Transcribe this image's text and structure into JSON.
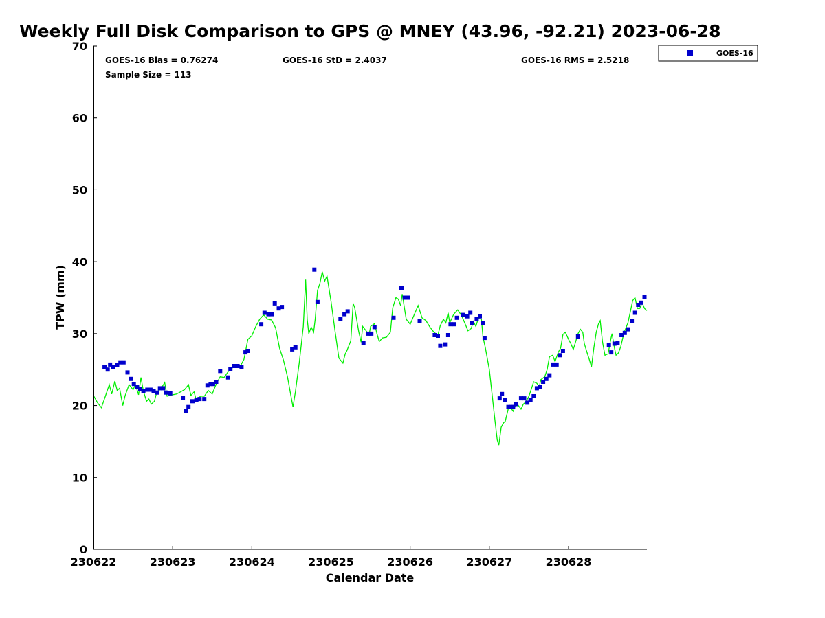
{
  "chart_data": {
    "type": "scatter",
    "title": "Weekly Full Disk Comparison to GPS @ MNEY (43.96, -92.21) 2023-06-28",
    "xlabel": "Calendar Date",
    "ylabel": "TPW (mm)",
    "x_start": "2023-06-22T00:00",
    "xlim_days": [
      0,
      6.99
    ],
    "ylim": [
      0,
      70
    ],
    "yticks": [
      0,
      10,
      20,
      30,
      40,
      50,
      60,
      70
    ],
    "xticks": [
      {
        "day": 0,
        "label": "230622"
      },
      {
        "day": 1,
        "label": "230623"
      },
      {
        "day": 2,
        "label": "230624"
      },
      {
        "day": 3,
        "label": "230625"
      },
      {
        "day": 4,
        "label": "230626"
      },
      {
        "day": 5,
        "label": "230627"
      },
      {
        "day": 6,
        "label": "230628"
      }
    ],
    "grid": false,
    "legend": {
      "position": "top-right-outside",
      "entries": [
        "GOES-16"
      ]
    },
    "stats": {
      "bias": "GOES-16 Bias = 0.76274",
      "std": "GOES-16 StD = 2.4037",
      "rms": "GOES-16 RMS = 2.5218",
      "sample": "Sample Size = 113"
    },
    "colors": {
      "goes": "#0000cc",
      "gps": "#00ee00"
    },
    "series": [
      {
        "name": "GOES-16",
        "marker": "square",
        "points": [
          [
            0.14,
            25.4
          ],
          [
            0.18,
            25.0
          ],
          [
            0.21,
            25.7
          ],
          [
            0.25,
            25.4
          ],
          [
            0.3,
            25.6
          ],
          [
            0.34,
            26.0
          ],
          [
            0.38,
            26.0
          ],
          [
            0.43,
            24.6
          ],
          [
            0.47,
            23.7
          ],
          [
            0.51,
            23.0
          ],
          [
            0.55,
            22.6
          ],
          [
            0.59,
            22.3
          ],
          [
            0.63,
            22.0
          ],
          [
            0.68,
            22.2
          ],
          [
            0.72,
            22.2
          ],
          [
            0.76,
            22.0
          ],
          [
            0.8,
            21.8
          ],
          [
            0.84,
            22.4
          ],
          [
            0.88,
            22.4
          ],
          [
            0.92,
            21.8
          ],
          [
            0.97,
            21.7
          ],
          [
            1.13,
            21.1
          ],
          [
            1.17,
            19.2
          ],
          [
            1.2,
            19.8
          ],
          [
            1.25,
            20.6
          ],
          [
            1.3,
            20.8
          ],
          [
            1.34,
            20.9
          ],
          [
            1.4,
            20.9
          ],
          [
            1.44,
            22.8
          ],
          [
            1.48,
            23.0
          ],
          [
            1.51,
            23.0
          ],
          [
            1.55,
            23.3
          ],
          [
            1.6,
            24.8
          ],
          [
            1.7,
            23.9
          ],
          [
            1.73,
            25.1
          ],
          [
            1.78,
            25.5
          ],
          [
            1.82,
            25.5
          ],
          [
            1.87,
            25.4
          ],
          [
            1.92,
            27.4
          ],
          [
            1.95,
            27.6
          ],
          [
            2.12,
            31.3
          ],
          [
            2.16,
            32.9
          ],
          [
            2.21,
            32.7
          ],
          [
            2.25,
            32.7
          ],
          [
            2.29,
            34.2
          ],
          [
            2.34,
            33.5
          ],
          [
            2.38,
            33.7
          ],
          [
            2.51,
            27.8
          ],
          [
            2.55,
            28.1
          ],
          [
            2.79,
            38.9
          ],
          [
            2.83,
            34.4
          ],
          [
            3.12,
            32.0
          ],
          [
            3.17,
            32.7
          ],
          [
            3.21,
            33.1
          ],
          [
            3.41,
            28.7
          ],
          [
            3.47,
            30.0
          ],
          [
            3.51,
            30.0
          ],
          [
            3.55,
            30.9
          ],
          [
            3.79,
            32.2
          ],
          [
            3.89,
            36.3
          ],
          [
            3.93,
            35.0
          ],
          [
            3.97,
            35.0
          ],
          [
            4.12,
            31.8
          ],
          [
            4.31,
            29.8
          ],
          [
            4.35,
            29.7
          ],
          [
            4.38,
            28.3
          ],
          [
            4.44,
            28.5
          ],
          [
            4.48,
            29.8
          ],
          [
            4.51,
            31.3
          ],
          [
            4.55,
            31.3
          ],
          [
            4.59,
            32.2
          ],
          [
            4.67,
            32.6
          ],
          [
            4.72,
            32.4
          ],
          [
            4.76,
            32.9
          ],
          [
            4.78,
            31.5
          ],
          [
            4.84,
            32.0
          ],
          [
            4.88,
            32.4
          ],
          [
            4.92,
            31.5
          ],
          [
            4.94,
            29.4
          ],
          [
            5.13,
            21.0
          ],
          [
            5.16,
            21.6
          ],
          [
            5.2,
            20.8
          ],
          [
            5.24,
            19.8
          ],
          [
            5.28,
            19.8
          ],
          [
            5.3,
            19.8
          ],
          [
            5.34,
            20.2
          ],
          [
            5.4,
            21.0
          ],
          [
            5.44,
            21.0
          ],
          [
            5.48,
            20.4
          ],
          [
            5.52,
            20.8
          ],
          [
            5.56,
            21.3
          ],
          [
            5.6,
            22.4
          ],
          [
            5.64,
            22.6
          ],
          [
            5.68,
            23.3
          ],
          [
            5.72,
            23.7
          ],
          [
            5.76,
            24.2
          ],
          [
            5.8,
            25.7
          ],
          [
            5.85,
            25.7
          ],
          [
            5.89,
            27.0
          ],
          [
            5.93,
            27.6
          ],
          [
            6.12,
            29.6
          ],
          [
            6.51,
            28.4
          ],
          [
            6.54,
            27.4
          ],
          [
            6.58,
            28.6
          ],
          [
            6.62,
            28.7
          ],
          [
            6.67,
            29.8
          ],
          [
            6.71,
            30.1
          ],
          [
            6.75,
            30.6
          ],
          [
            6.8,
            31.8
          ],
          [
            6.84,
            32.9
          ],
          [
            6.88,
            34.0
          ],
          [
            6.92,
            34.3
          ],
          [
            6.96,
            35.1
          ]
        ]
      },
      {
        "name": "",
        "line": true,
        "points": [
          [
            0.0,
            21.4
          ],
          [
            0.05,
            20.4
          ],
          [
            0.1,
            19.7
          ],
          [
            0.15,
            21.3
          ],
          [
            0.2,
            22.9
          ],
          [
            0.23,
            21.6
          ],
          [
            0.27,
            23.4
          ],
          [
            0.3,
            22.1
          ],
          [
            0.33,
            22.4
          ],
          [
            0.37,
            20.0
          ],
          [
            0.4,
            21.4
          ],
          [
            0.45,
            22.9
          ],
          [
            0.5,
            22.2
          ],
          [
            0.53,
            22.9
          ],
          [
            0.57,
            21.5
          ],
          [
            0.6,
            23.9
          ],
          [
            0.63,
            22.0
          ],
          [
            0.67,
            20.6
          ],
          [
            0.7,
            20.9
          ],
          [
            0.73,
            20.2
          ],
          [
            0.77,
            20.6
          ],
          [
            0.8,
            21.9
          ],
          [
            0.85,
            22.3
          ],
          [
            0.9,
            23.2
          ],
          [
            0.93,
            21.3
          ],
          [
            1.0,
            21.5
          ],
          [
            1.05,
            21.6
          ],
          [
            1.1,
            21.9
          ],
          [
            1.15,
            22.2
          ],
          [
            1.2,
            22.9
          ],
          [
            1.23,
            21.4
          ],
          [
            1.27,
            21.9
          ],
          [
            1.3,
            20.7
          ],
          [
            1.35,
            21.3
          ],
          [
            1.4,
            21.3
          ],
          [
            1.45,
            22.1
          ],
          [
            1.5,
            21.6
          ],
          [
            1.55,
            23.0
          ],
          [
            1.6,
            24.0
          ],
          [
            1.65,
            23.9
          ],
          [
            1.7,
            24.7
          ],
          [
            1.75,
            25.2
          ],
          [
            1.8,
            25.6
          ],
          [
            1.85,
            25.4
          ],
          [
            1.9,
            26.4
          ],
          [
            1.95,
            29.2
          ],
          [
            2.0,
            29.7
          ],
          [
            2.05,
            31.0
          ],
          [
            2.1,
            32.0
          ],
          [
            2.15,
            32.6
          ],
          [
            2.2,
            32.0
          ],
          [
            2.25,
            31.9
          ],
          [
            2.3,
            30.8
          ],
          [
            2.35,
            28.0
          ],
          [
            2.4,
            26.3
          ],
          [
            2.45,
            24.0
          ],
          [
            2.5,
            21.0
          ],
          [
            2.52,
            19.8
          ],
          [
            2.55,
            21.9
          ],
          [
            2.6,
            26.0
          ],
          [
            2.65,
            31.0
          ],
          [
            2.68,
            37.5
          ],
          [
            2.7,
            32.0
          ],
          [
            2.72,
            30.0
          ],
          [
            2.75,
            30.9
          ],
          [
            2.78,
            30.2
          ],
          [
            2.8,
            32.0
          ],
          [
            2.83,
            36.0
          ],
          [
            2.86,
            37.0
          ],
          [
            2.89,
            38.6
          ],
          [
            2.92,
            37.3
          ],
          [
            2.95,
            38.0
          ],
          [
            3.0,
            34.5
          ],
          [
            3.05,
            30.4
          ],
          [
            3.1,
            26.6
          ],
          [
            3.15,
            25.9
          ],
          [
            3.18,
            27.2
          ],
          [
            3.2,
            27.6
          ],
          [
            3.25,
            29.0
          ],
          [
            3.28,
            34.2
          ],
          [
            3.3,
            33.6
          ],
          [
            3.35,
            30.3
          ],
          [
            3.38,
            28.8
          ],
          [
            3.4,
            31.0
          ],
          [
            3.45,
            30.3
          ],
          [
            3.48,
            29.8
          ],
          [
            3.5,
            31.0
          ],
          [
            3.55,
            31.4
          ],
          [
            3.58,
            30.0
          ],
          [
            3.61,
            28.9
          ],
          [
            3.65,
            29.4
          ],
          [
            3.7,
            29.5
          ],
          [
            3.75,
            30.2
          ],
          [
            3.78,
            33.6
          ],
          [
            3.82,
            35.0
          ],
          [
            3.85,
            34.8
          ],
          [
            3.88,
            33.9
          ],
          [
            3.9,
            35.5
          ],
          [
            3.95,
            32.0
          ],
          [
            4.0,
            31.3
          ],
          [
            4.05,
            32.6
          ],
          [
            4.1,
            33.9
          ],
          [
            4.15,
            32.2
          ],
          [
            4.2,
            31.8
          ],
          [
            4.25,
            30.9
          ],
          [
            4.3,
            30.2
          ],
          [
            4.35,
            29.8
          ],
          [
            4.38,
            31.1
          ],
          [
            4.42,
            32.0
          ],
          [
            4.45,
            31.5
          ],
          [
            4.48,
            32.9
          ],
          [
            4.5,
            31.5
          ],
          [
            4.55,
            32.7
          ],
          [
            4.6,
            33.3
          ],
          [
            4.65,
            32.5
          ],
          [
            4.7,
            31.2
          ],
          [
            4.73,
            30.4
          ],
          [
            4.77,
            30.7
          ],
          [
            4.8,
            31.7
          ],
          [
            4.83,
            31.0
          ],
          [
            4.86,
            32.1
          ],
          [
            4.9,
            32.0
          ],
          [
            4.92,
            29.5
          ],
          [
            4.95,
            28.0
          ],
          [
            5.0,
            25.0
          ],
          [
            5.03,
            22.0
          ],
          [
            5.07,
            18.0
          ],
          [
            5.1,
            15.2
          ],
          [
            5.12,
            14.5
          ],
          [
            5.15,
            17.0
          ],
          [
            5.18,
            17.6
          ],
          [
            5.2,
            17.8
          ],
          [
            5.24,
            19.6
          ],
          [
            5.27,
            19.7
          ],
          [
            5.3,
            19.2
          ],
          [
            5.33,
            20.0
          ],
          [
            5.36,
            20.1
          ],
          [
            5.4,
            19.5
          ],
          [
            5.43,
            20.2
          ],
          [
            5.46,
            20.5
          ],
          [
            5.5,
            21.3
          ],
          [
            5.53,
            22.3
          ],
          [
            5.56,
            23.3
          ],
          [
            5.6,
            23.1
          ],
          [
            5.63,
            22.6
          ],
          [
            5.65,
            23.6
          ],
          [
            5.7,
            24.0
          ],
          [
            5.73,
            25.0
          ],
          [
            5.76,
            26.8
          ],
          [
            5.8,
            27.0
          ],
          [
            5.83,
            26.1
          ],
          [
            5.87,
            27.4
          ],
          [
            5.9,
            28.0
          ],
          [
            5.93,
            29.9
          ],
          [
            5.96,
            30.2
          ],
          [
            6.0,
            29.2
          ],
          [
            6.03,
            28.6
          ],
          [
            6.06,
            27.8
          ],
          [
            6.08,
            28.5
          ],
          [
            6.12,
            30.0
          ],
          [
            6.15,
            30.6
          ],
          [
            6.18,
            30.2
          ],
          [
            6.2,
            28.6
          ],
          [
            6.23,
            27.5
          ],
          [
            6.26,
            26.5
          ],
          [
            6.29,
            25.4
          ],
          [
            6.32,
            28.0
          ],
          [
            6.35,
            30.2
          ],
          [
            6.38,
            31.4
          ],
          [
            6.4,
            31.8
          ],
          [
            6.43,
            28.8
          ],
          [
            6.46,
            27.0
          ],
          [
            6.5,
            27.2
          ],
          [
            6.53,
            29.0
          ],
          [
            6.55,
            30.0
          ],
          [
            6.58,
            28.0
          ],
          [
            6.6,
            27.0
          ],
          [
            6.63,
            27.3
          ],
          [
            6.66,
            28.2
          ],
          [
            6.7,
            30.1
          ],
          [
            6.75,
            31.5
          ],
          [
            6.78,
            33.0
          ],
          [
            6.81,
            34.6
          ],
          [
            6.84,
            35.0
          ],
          [
            6.87,
            33.5
          ],
          [
            6.9,
            33.5
          ],
          [
            6.93,
            34.3
          ],
          [
            6.96,
            33.5
          ],
          [
            6.99,
            33.2
          ]
        ]
      }
    ]
  }
}
